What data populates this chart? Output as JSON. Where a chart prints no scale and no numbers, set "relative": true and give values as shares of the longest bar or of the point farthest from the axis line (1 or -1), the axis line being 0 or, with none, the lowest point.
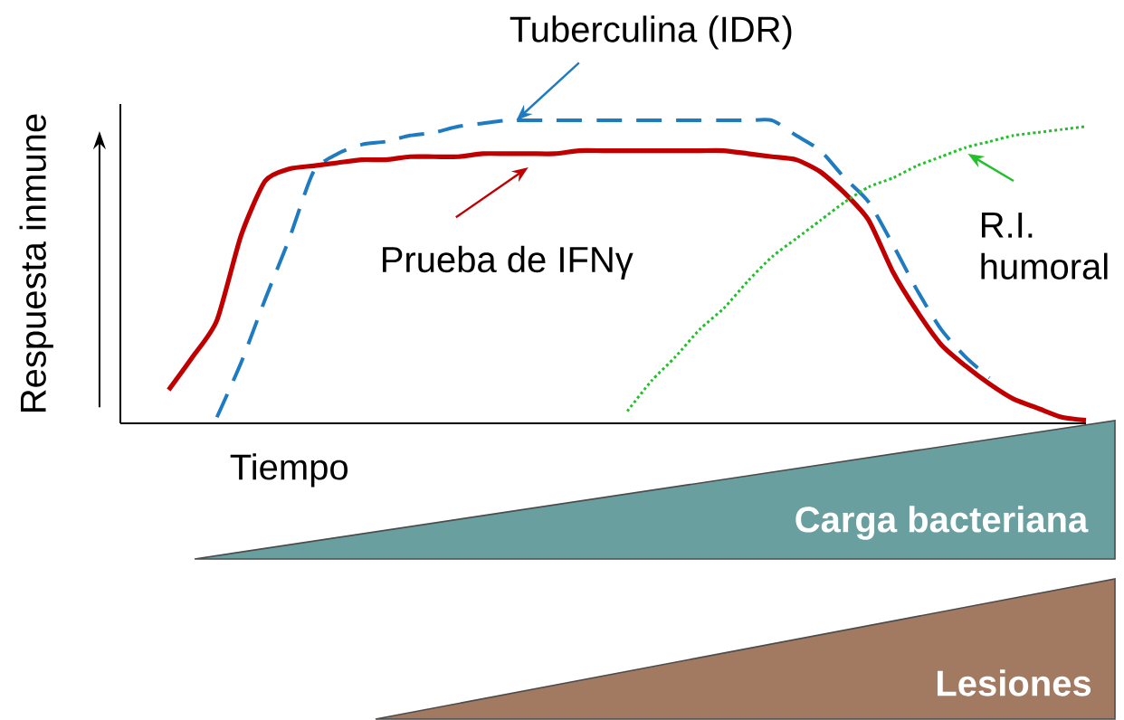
{
  "chart_data": [
    {
      "type": "line",
      "relative": true,
      "tick_labels": false,
      "legend": "top",
      "xlabel": "Tiempo",
      "ylabel": "Respuesta inmune",
      "categories": [
        null,
        null,
        null,
        null,
        null,
        null,
        null,
        null,
        null,
        null,
        null,
        null,
        null,
        null,
        null,
        null,
        null,
        null,
        null,
        null,
        null,
        null,
        null,
        null,
        null,
        null,
        null,
        null,
        null,
        null,
        null,
        null,
        null,
        null,
        null,
        null,
        null,
        null,
        null,
        null,
        null
      ],
      "series": [
        {
          "name": "Tuberculina (IDR)",
          "color": "#1f7bc1",
          "line_style": "dashed",
          "values": [
            null,
            null,
            null,
            null,
            0.02,
            0.2,
            0.41,
            0.61,
            0.83,
            0.89,
            0.92,
            0.93,
            0.95,
            0.96,
            0.98,
            0.99,
            1,
            1,
            1,
            1,
            1,
            1,
            1,
            1,
            1,
            1,
            1,
            1,
            0.95,
            0.9,
            0.81,
            0.73,
            0.59,
            0.44,
            0.31,
            0.22,
            0.15,
            null,
            null,
            null,
            null
          ]
        },
        {
          "name": "Prueba de IFNγ",
          "color": "#c00000",
          "line_style": "solid",
          "values": [
            null,
            null,
            0.11,
            0.22,
            0.34,
            0.62,
            0.8,
            0.84,
            0.85,
            0.86,
            0.87,
            0.87,
            0.88,
            0.88,
            0.88,
            0.89,
            0.89,
            0.89,
            0.89,
            0.9,
            0.9,
            0.9,
            0.9,
            0.9,
            0.9,
            0.9,
            0.89,
            0.88,
            0.87,
            0.83,
            0.76,
            0.67,
            0.5,
            0.37,
            0.26,
            0.19,
            0.13,
            0.08,
            0.05,
            0.02,
            0.01
          ]
        },
        {
          "name": "R.I. humoral",
          "color": "#22c02a",
          "line_style": "dotted",
          "values": [
            null,
            null,
            null,
            null,
            null,
            null,
            null,
            null,
            null,
            null,
            null,
            null,
            null,
            null,
            null,
            null,
            null,
            null,
            null,
            null,
            null,
            0.04,
            0.14,
            0.22,
            0.31,
            0.38,
            0.47,
            0.55,
            0.61,
            0.67,
            0.73,
            0.78,
            0.81,
            0.85,
            0.88,
            0.91,
            0.93,
            0.95,
            0.96,
            0.97,
            0.98
          ]
        }
      ]
    },
    {
      "type": "area",
      "relative": true,
      "categories": [
        null,
        null
      ],
      "values": [
        0,
        1
      ],
      "color": "#6a9fa0",
      "annotations": [
        "Carga bacteriana"
      ]
    },
    {
      "type": "area",
      "relative": true,
      "categories": [
        null,
        null
      ],
      "values": [
        0,
        1
      ],
      "color": "#a27a62",
      "annotations": [
        "Lesiones"
      ]
    }
  ]
}
